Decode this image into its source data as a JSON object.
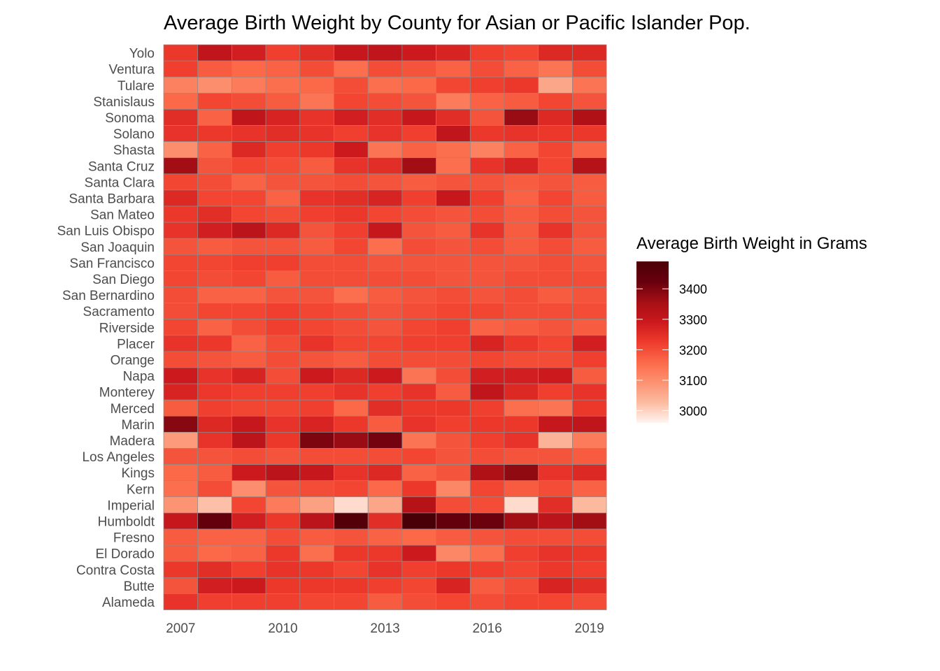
{
  "chart_data": {
    "type": "heatmap",
    "title": "Average Birth Weight by County for Asian or Pacific Islander Pop.",
    "xlabel": "",
    "ylabel": "",
    "x": [
      2007,
      2008,
      2009,
      2010,
      2011,
      2012,
      2013,
      2014,
      2015,
      2016,
      2017,
      2018,
      2019
    ],
    "x_tick_labels": [
      "2007",
      "2010",
      "2013",
      "2016",
      "2019"
    ],
    "y": [
      "Yolo",
      "Ventura",
      "Tulare",
      "Stanislaus",
      "Sonoma",
      "Solano",
      "Shasta",
      "Santa Cruz",
      "Santa Clara",
      "Santa Barbara",
      "San Mateo",
      "San Luis Obispo",
      "San Joaquin",
      "San Francisco",
      "San Diego",
      "San Bernardino",
      "Sacramento",
      "Riverside",
      "Placer",
      "Orange",
      "Napa",
      "Monterey",
      "Merced",
      "Marin",
      "Madera",
      "Los Angeles",
      "Kings",
      "Kern",
      "Imperial",
      "Humboldt",
      "Fresno",
      "El Dorado",
      "Contra Costa",
      "Butte",
      "Alameda"
    ],
    "values": [
      [
        3230,
        3310,
        3280,
        3220,
        3250,
        3300,
        3310,
        3290,
        3270,
        3220,
        3210,
        3260,
        3260
      ],
      [
        3220,
        3180,
        3160,
        3170,
        3200,
        3150,
        3200,
        3190,
        3170,
        3200,
        3170,
        3140,
        3200
      ],
      [
        3120,
        3100,
        3130,
        3150,
        3160,
        3200,
        3150,
        3160,
        3210,
        3220,
        3230,
        3060,
        3140
      ],
      [
        3160,
        3210,
        3200,
        3180,
        3140,
        3210,
        3200,
        3190,
        3130,
        3170,
        3180,
        3210,
        3190
      ],
      [
        3250,
        3170,
        3310,
        3270,
        3240,
        3280,
        3250,
        3300,
        3250,
        3190,
        3370,
        3260,
        3340
      ],
      [
        3240,
        3230,
        3240,
        3250,
        3240,
        3220,
        3240,
        3220,
        3310,
        3230,
        3240,
        3230,
        3230
      ],
      [
        3100,
        3170,
        3260,
        3220,
        3230,
        3290,
        3140,
        3170,
        3150,
        3120,
        3170,
        3210,
        3170
      ],
      [
        3360,
        3190,
        3210,
        3200,
        3180,
        3240,
        3250,
        3360,
        3150,
        3240,
        3270,
        3210,
        3330
      ],
      [
        3210,
        3200,
        3170,
        3190,
        3190,
        3200,
        3190,
        3180,
        3190,
        3190,
        3180,
        3190,
        3180
      ],
      [
        3260,
        3210,
        3210,
        3170,
        3240,
        3250,
        3270,
        3220,
        3300,
        3220,
        3170,
        3210,
        3180
      ],
      [
        3230,
        3250,
        3210,
        3200,
        3220,
        3230,
        3210,
        3200,
        3190,
        3200,
        3180,
        3200,
        3190
      ],
      [
        3240,
        3280,
        3320,
        3260,
        3190,
        3220,
        3300,
        3190,
        3180,
        3240,
        3180,
        3240,
        3190
      ],
      [
        3190,
        3180,
        3190,
        3190,
        3180,
        3210,
        3150,
        3200,
        3190,
        3200,
        3180,
        3200,
        3180
      ],
      [
        3210,
        3210,
        3220,
        3220,
        3200,
        3200,
        3190,
        3190,
        3190,
        3190,
        3190,
        3200,
        3190
      ],
      [
        3210,
        3200,
        3210,
        3180,
        3200,
        3200,
        3200,
        3200,
        3190,
        3190,
        3200,
        3200,
        3200
      ],
      [
        3200,
        3170,
        3170,
        3190,
        3190,
        3150,
        3180,
        3190,
        3200,
        3190,
        3200,
        3180,
        3190
      ],
      [
        3200,
        3210,
        3210,
        3220,
        3210,
        3200,
        3190,
        3200,
        3210,
        3210,
        3200,
        3200,
        3200
      ],
      [
        3210,
        3170,
        3200,
        3220,
        3210,
        3200,
        3190,
        3210,
        3220,
        3170,
        3180,
        3190,
        3180
      ],
      [
        3240,
        3230,
        3170,
        3200,
        3240,
        3210,
        3210,
        3220,
        3220,
        3270,
        3230,
        3210,
        3280
      ],
      [
        3200,
        3190,
        3180,
        3200,
        3190,
        3180,
        3200,
        3200,
        3200,
        3210,
        3200,
        3200,
        3220
      ],
      [
        3290,
        3240,
        3270,
        3200,
        3290,
        3260,
        3290,
        3140,
        3200,
        3280,
        3280,
        3290,
        3180
      ],
      [
        3270,
        3230,
        3220,
        3220,
        3220,
        3240,
        3220,
        3240,
        3180,
        3310,
        3260,
        3220,
        3240
      ],
      [
        3180,
        3220,
        3210,
        3210,
        3220,
        3160,
        3250,
        3230,
        3230,
        3220,
        3150,
        3140,
        3230
      ],
      [
        3390,
        3260,
        3300,
        3240,
        3270,
        3230,
        3180,
        3240,
        3220,
        3230,
        3230,
        3300,
        3310
      ],
      [
        3080,
        3240,
        3320,
        3230,
        3400,
        3370,
        3410,
        3140,
        3190,
        3220,
        3240,
        3040,
        3130
      ],
      [
        3190,
        3190,
        3200,
        3190,
        3200,
        3200,
        3200,
        3210,
        3190,
        3200,
        3190,
        3190,
        3180
      ],
      [
        3160,
        3180,
        3290,
        3320,
        3300,
        3240,
        3260,
        3170,
        3190,
        3340,
        3380,
        3240,
        3260
      ],
      [
        3150,
        3200,
        3100,
        3190,
        3200,
        3210,
        3160,
        3230,
        3110,
        3210,
        3180,
        3200,
        3170
      ],
      [
        3090,
        3020,
        3210,
        3130,
        3070,
        2990,
        3060,
        3330,
        3200,
        3200,
        2990,
        3250,
        3030
      ],
      [
        3300,
        3430,
        3280,
        3230,
        3320,
        3470,
        3250,
        3490,
        3430,
        3420,
        3360,
        3320,
        3360
      ],
      [
        3180,
        3170,
        3170,
        3200,
        3180,
        3190,
        3170,
        3160,
        3180,
        3190,
        3200,
        3200,
        3200
      ],
      [
        3180,
        3160,
        3170,
        3230,
        3150,
        3230,
        3230,
        3290,
        3110,
        3150,
        3220,
        3240,
        3230
      ],
      [
        3230,
        3250,
        3220,
        3240,
        3230,
        3210,
        3240,
        3220,
        3230,
        3220,
        3210,
        3230,
        3220
      ],
      [
        3190,
        3280,
        3290,
        3230,
        3230,
        3230,
        3220,
        3210,
        3270,
        3180,
        3200,
        3270,
        3250
      ],
      [
        3240,
        3220,
        3220,
        3220,
        3210,
        3210,
        3180,
        3200,
        3210,
        3200,
        3210,
        3210,
        3200
      ]
    ],
    "legend": {
      "title": "Average Birth Weight in Grams",
      "ticks": [
        "3000",
        "3100",
        "3200",
        "3300",
        "3400"
      ],
      "tick_values": [
        3000,
        3100,
        3200,
        3300,
        3400
      ],
      "range": [
        2960,
        3490
      ],
      "placement": "right"
    },
    "color_scale": [
      "#fff5f0",
      "#fcbba1",
      "#fc9272",
      "#fb6a4a",
      "#ef3b2c",
      "#cb181d",
      "#a50f15",
      "#67000d",
      "#4a0007"
    ],
    "cell_border_color": "#8c8c8c",
    "grid": false
  }
}
